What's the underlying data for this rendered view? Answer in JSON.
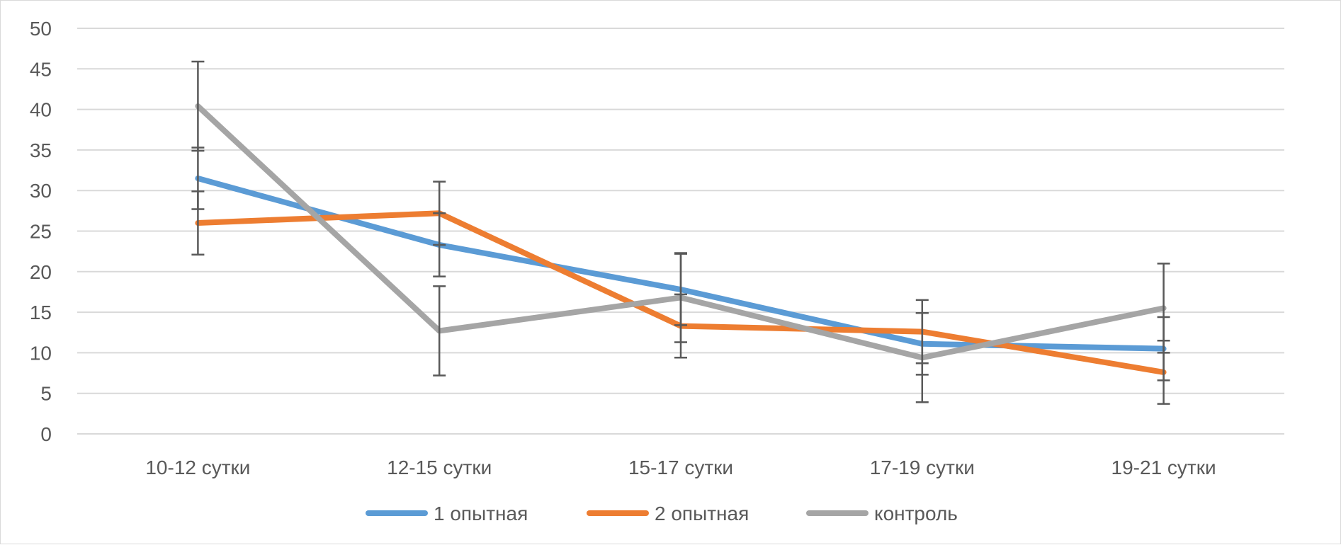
{
  "chart_data": {
    "type": "line",
    "title": "",
    "xlabel": "",
    "ylabel": "",
    "ylim": [
      0,
      50
    ],
    "ytick_step": 5,
    "yticks": [
      "0",
      "5",
      "10",
      "15",
      "20",
      "25",
      "30",
      "35",
      "40",
      "45",
      "50"
    ],
    "grid": true,
    "legend_position": "bottom",
    "categories": [
      "10-12 сутки",
      "12-15 сутки",
      "15-17 сутки",
      "17-19 сутки",
      "19-21 сутки"
    ],
    "series": [
      {
        "name": "1 опытная",
        "color": "#5b9bd5",
        "values": [
          31.5,
          23.3,
          17.8,
          11.1,
          10.5
        ],
        "error": [
          3.8,
          3.9,
          4.4,
          3.8,
          3.9
        ]
      },
      {
        "name": "2 опытная",
        "color": "#ed7d31",
        "values": [
          26.0,
          27.2,
          13.3,
          12.6,
          7.6
        ],
        "error": [
          3.9,
          3.9,
          3.9,
          3.9,
          3.9
        ]
      },
      {
        "name": "контроль",
        "color": "#a5a5a5",
        "values": [
          40.4,
          12.7,
          16.8,
          9.4,
          15.5
        ],
        "error": [
          5.5,
          5.5,
          5.5,
          5.5,
          5.5
        ]
      }
    ]
  }
}
